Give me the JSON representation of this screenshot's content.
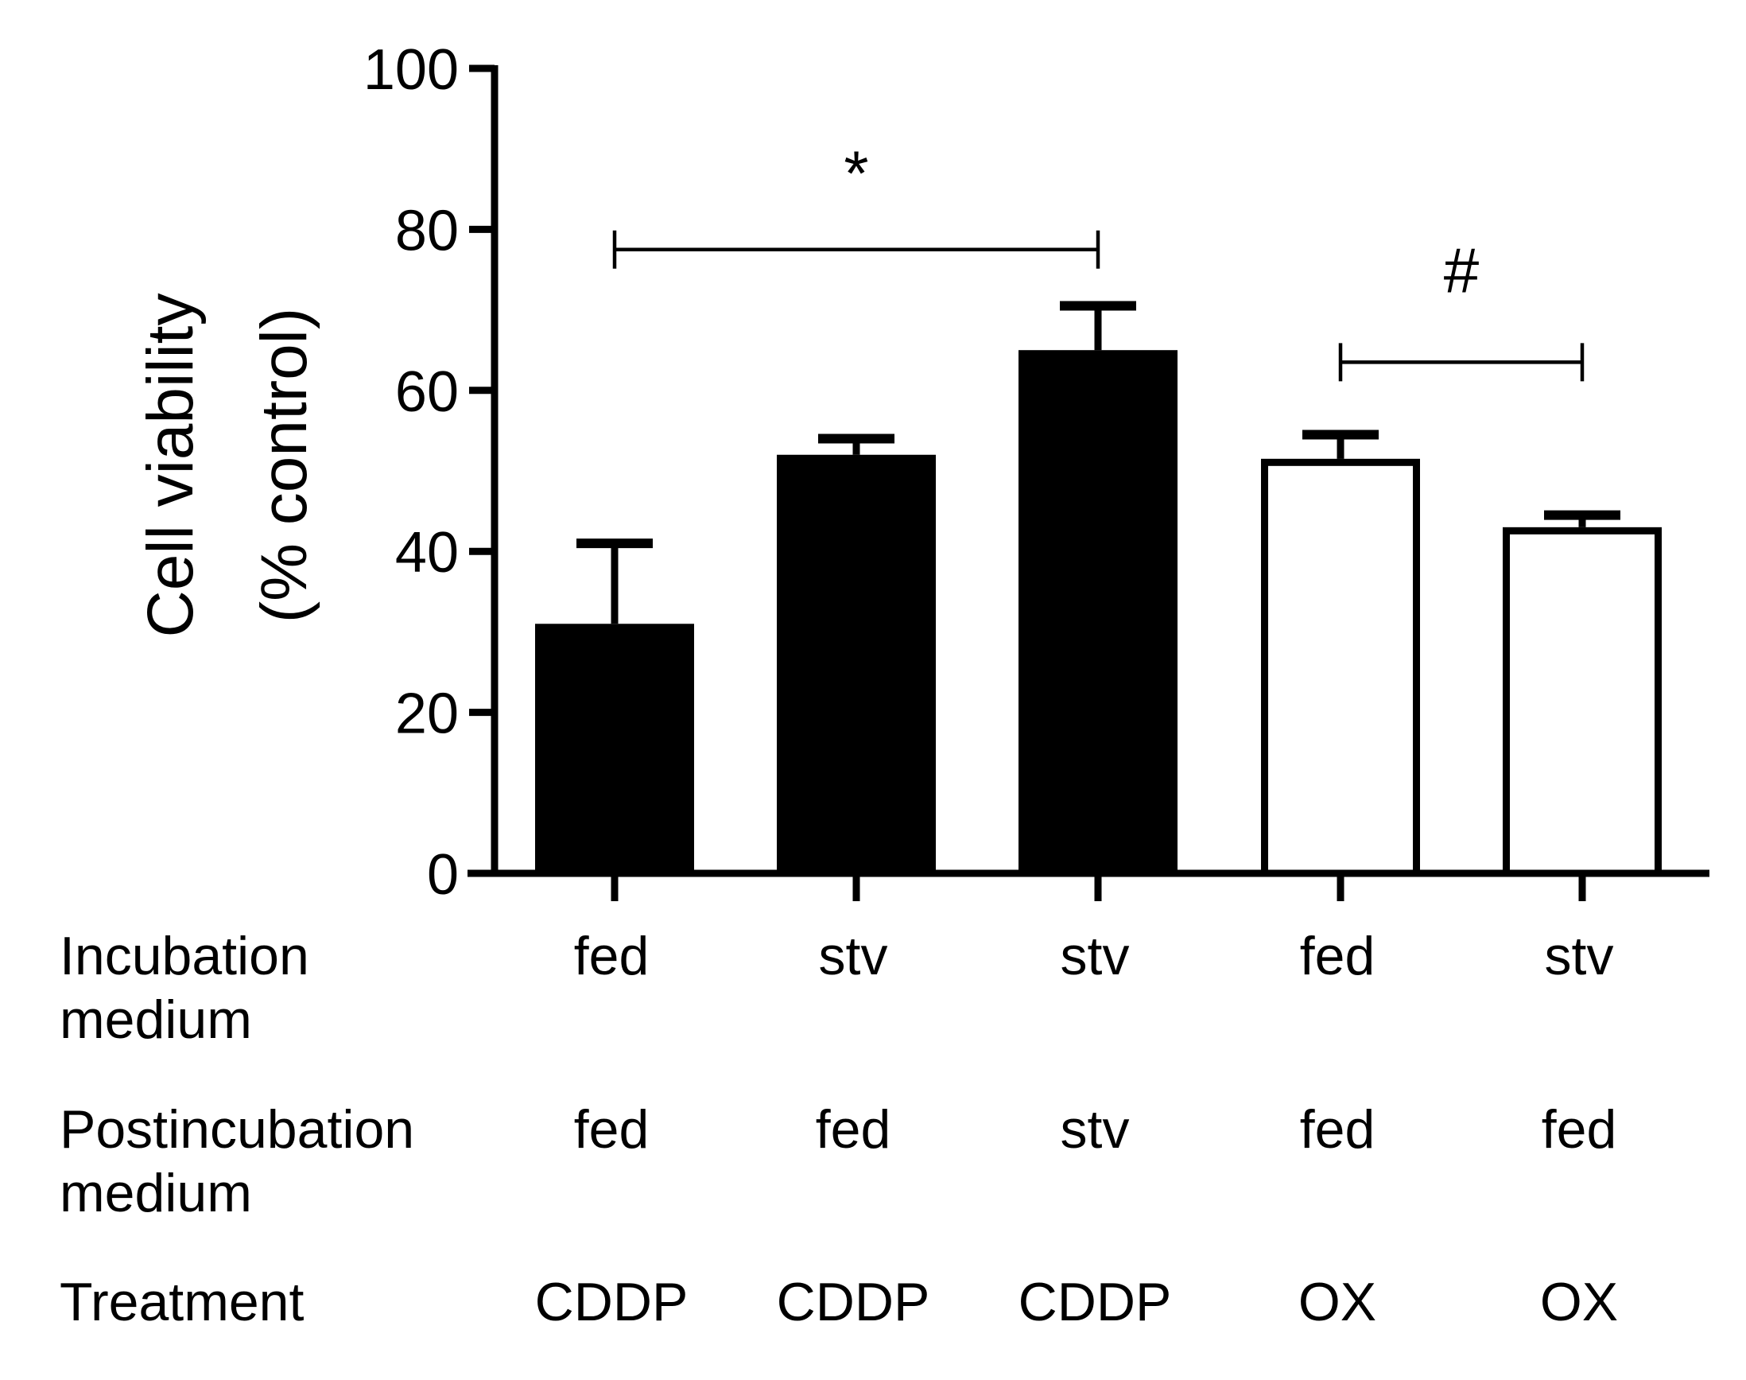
{
  "chart_data": {
    "type": "bar",
    "ylabel": [
      "Cell viability",
      "(% control)"
    ],
    "ylim": [
      0,
      100
    ],
    "yticks": [
      0,
      20,
      40,
      60,
      80,
      100
    ],
    "bars": [
      {
        "value": 31,
        "error": 10,
        "fill": "solid"
      },
      {
        "value": 52,
        "error": 2,
        "fill": "solid"
      },
      {
        "value": 65,
        "error": 5.5,
        "fill": "solid"
      },
      {
        "value": 51.5,
        "error": 3,
        "fill": "open"
      },
      {
        "value": 43,
        "error": 1.5,
        "fill": "open"
      }
    ],
    "rows": [
      {
        "label": [
          "Incubation",
          "medium"
        ],
        "cells": [
          "fed",
          "stv",
          "stv",
          "fed",
          "stv"
        ]
      },
      {
        "label": [
          "Postincubation",
          "medium"
        ],
        "cells": [
          "fed",
          "fed",
          "stv",
          "fed",
          "fed"
        ]
      },
      {
        "label": [
          "Treatment"
        ],
        "cells": [
          "CDDP",
          "CDDP",
          "CDDP",
          "OX",
          "OX"
        ]
      }
    ],
    "annotations": [
      {
        "text": "*",
        "from_bar": 0,
        "to_bar": 2,
        "y": 77.5
      },
      {
        "text": "#",
        "from_bar": 3,
        "to_bar": 4,
        "y": 63.5
      }
    ],
    "colors": {
      "bar_solid": "#000000",
      "bar_open": "#ffffff",
      "stroke": "#000000"
    }
  }
}
